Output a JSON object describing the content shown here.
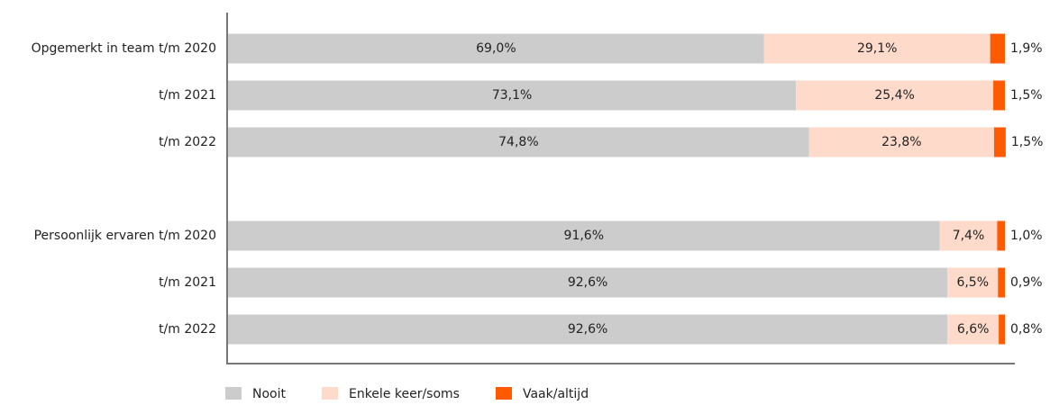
{
  "chart_data": {
    "type": "stacked_barh",
    "categories": [
      "Opgemerkt in team t/m 2020",
      "t/m 2021",
      "t/m 2022",
      null,
      "Persoonlijk ervaren t/m 2020",
      "t/m 2021",
      "t/m 2022"
    ],
    "xlim": [
      0,
      100
    ],
    "legend": "bottom",
    "series": [
      {
        "name": "Nooit",
        "color": "#cccccc",
        "values": [
          69.0,
          73.1,
          74.8,
          null,
          91.6,
          92.6,
          92.6
        ],
        "value_labels": [
          "69,0%",
          "73,1%",
          "74,8%",
          null,
          "91,6%",
          "92,6%",
          "92,6%"
        ]
      },
      {
        "name": "Enkele keer/soms",
        "color": "#fddac9",
        "values": [
          29.1,
          25.4,
          23.8,
          null,
          7.4,
          6.5,
          6.6
        ],
        "value_labels": [
          "29,1%",
          "25,4%",
          "23,8%",
          null,
          "7,4%",
          "6,5%",
          "6,6%"
        ]
      },
      {
        "name": "Vaak/altijd",
        "color": "#ff5a00",
        "values": [
          1.9,
          1.5,
          1.5,
          null,
          1.0,
          0.9,
          0.8
        ],
        "value_labels": [
          "1,9%",
          "1,5%",
          "1,5%",
          null,
          "1,0%",
          "0,9%",
          "0,8%"
        ]
      }
    ]
  }
}
